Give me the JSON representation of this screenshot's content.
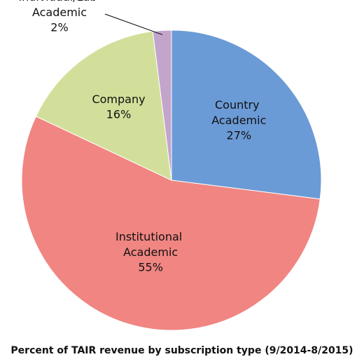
{
  "chart_data": {
    "type": "pie",
    "title": "Percent of TAIR  revenue by subscription type (9/2014-8/2015)",
    "categories": [
      "Country Academic",
      "Institutional Academic",
      "Company",
      "Individual/Lab Academic"
    ],
    "values": [
      27,
      55,
      16,
      2
    ],
    "value_labels": [
      "27%",
      "55%",
      "16%",
      "2%"
    ],
    "colors": [
      "#6b9bd6",
      "#f08582",
      "#d2df9a",
      "#c3a5cc"
    ]
  }
}
